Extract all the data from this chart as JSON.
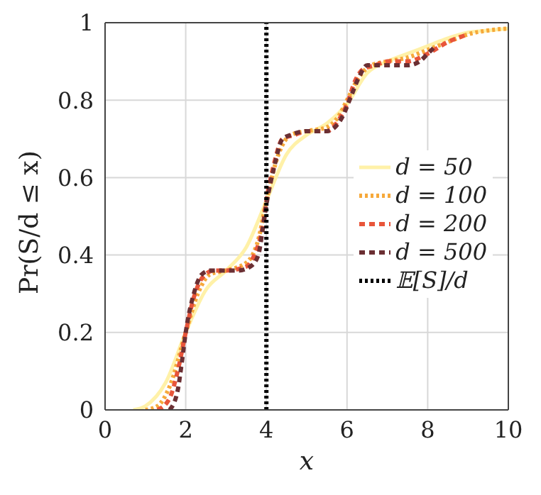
{
  "chart_data": {
    "type": "line",
    "xlabel": "x",
    "ylabel": "Pr(S/d ≤ x)",
    "xlim": [
      0,
      10
    ],
    "ylim": [
      0,
      1
    ],
    "xticks": [
      0,
      2,
      4,
      6,
      8,
      10
    ],
    "yticks": [
      0,
      0.2,
      0.4,
      0.6,
      0.8,
      1
    ],
    "grid": true,
    "legend": "right",
    "marker": "none",
    "series": [
      {
        "name": "d = 50",
        "color": "#fff1a8",
        "line_style": "solid",
        "x": [
          0.7,
          1.0,
          1.5,
          2.0,
          2.5,
          3.0,
          3.5,
          4.0,
          4.5,
          5.0,
          5.5,
          6.0,
          6.5,
          7.0,
          7.5,
          8.0,
          8.5,
          9.0,
          9.5,
          10.0
        ],
        "values": [
          0,
          0.01,
          0.07,
          0.2,
          0.31,
          0.36,
          0.42,
          0.54,
          0.66,
          0.71,
          0.74,
          0.79,
          0.87,
          0.9,
          0.92,
          0.94,
          0.96,
          0.975,
          0.98,
          0.985
        ]
      },
      {
        "name": "d = 100",
        "color": "#f6a93b",
        "line_style": "dotted",
        "x": [
          1.0,
          1.3,
          1.6,
          2.0,
          2.3,
          2.6,
          3.0,
          3.5,
          3.8,
          4.0,
          4.3,
          4.6,
          5.0,
          5.5,
          5.8,
          6.0,
          6.3,
          6.6,
          7.0,
          7.5,
          8.0,
          8.5,
          9.0,
          9.5,
          10.0
        ],
        "values": [
          0,
          0.01,
          0.06,
          0.2,
          0.3,
          0.35,
          0.36,
          0.38,
          0.44,
          0.54,
          0.66,
          0.71,
          0.72,
          0.73,
          0.76,
          0.8,
          0.86,
          0.89,
          0.9,
          0.91,
          0.93,
          0.95,
          0.97,
          0.98,
          0.985
        ]
      },
      {
        "name": "d = 200",
        "color": "#e8553a",
        "line_style": "dashed",
        "x": [
          1.3,
          1.6,
          1.8,
          2.0,
          2.2,
          2.4,
          2.7,
          3.0,
          3.5,
          3.7,
          3.9,
          4.0,
          4.2,
          4.4,
          4.7,
          5.0,
          5.5,
          5.8,
          6.0,
          6.2,
          6.4,
          6.7,
          7.0,
          7.5,
          8.0,
          8.5,
          9.0
        ],
        "values": [
          0,
          0.03,
          0.1,
          0.2,
          0.29,
          0.34,
          0.36,
          0.36,
          0.37,
          0.4,
          0.47,
          0.54,
          0.64,
          0.7,
          0.71,
          0.72,
          0.72,
          0.75,
          0.79,
          0.85,
          0.88,
          0.89,
          0.9,
          0.9,
          0.92,
          0.95,
          0.97
        ]
      },
      {
        "name": "d = 500",
        "color": "#6b2f33",
        "line_style": "dashed",
        "x": [
          1.6,
          1.8,
          1.9,
          2.0,
          2.2,
          2.4,
          2.6,
          3.0,
          3.3,
          3.6,
          3.8,
          3.9,
          4.0,
          4.2,
          4.4,
          4.6,
          5.0,
          5.5,
          5.7,
          5.9,
          6.1,
          6.3,
          6.5,
          7.0,
          7.5,
          7.8,
          8.0,
          8.2
        ],
        "values": [
          0,
          0.05,
          0.12,
          0.2,
          0.3,
          0.35,
          0.36,
          0.36,
          0.36,
          0.37,
          0.4,
          0.46,
          0.53,
          0.63,
          0.7,
          0.71,
          0.72,
          0.72,
          0.73,
          0.76,
          0.81,
          0.86,
          0.89,
          0.89,
          0.89,
          0.9,
          0.92,
          0.94
        ]
      },
      {
        "name": "𝔼[S]/d",
        "color": "#000000",
        "line_style": "dotted",
        "x": [
          4,
          4
        ],
        "values": [
          0,
          1
        ]
      }
    ]
  }
}
